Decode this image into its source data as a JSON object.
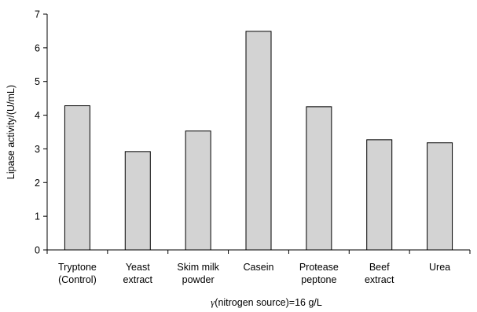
{
  "chart_data": {
    "type": "bar",
    "categories": [
      [
        "Tryptone",
        "(Control)"
      ],
      [
        "Yeast",
        "extract"
      ],
      [
        "Skim milk",
        "powder"
      ],
      [
        "Casein"
      ],
      [
        "Protease",
        "peptone"
      ],
      [
        "Beef",
        "extract"
      ],
      [
        "Urea"
      ]
    ],
    "values": [
      4.28,
      2.92,
      3.53,
      6.49,
      4.25,
      3.27,
      3.18
    ],
    "ylabel": "Lipase activity/(U/mL)",
    "xlabel_symbol": "γ",
    "xlabel_rest": "(nitrogen source)=16 g/L",
    "ylim": [
      0,
      7
    ],
    "yticks": [
      "0",
      "1",
      "2",
      "3",
      "4",
      "5",
      "6",
      "7"
    ],
    "grid": false,
    "legend": "none",
    "bar_color": "#d3d3d3",
    "edge_color": "#000000"
  }
}
